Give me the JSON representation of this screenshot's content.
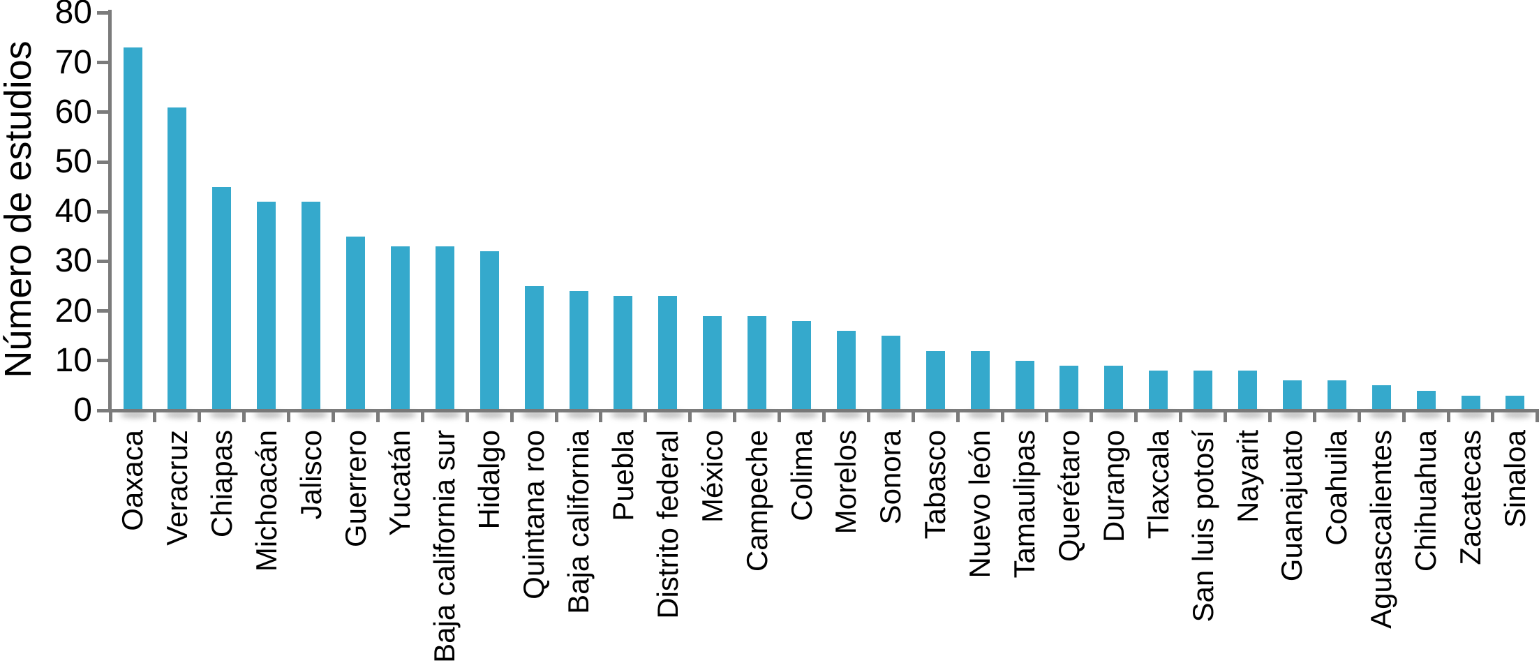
{
  "chart_data": {
    "type": "bar",
    "title": "",
    "xlabel": "",
    "ylabel": "Número de estudios",
    "ylim": [
      0,
      80
    ],
    "y_ticks": [
      0,
      10,
      20,
      30,
      40,
      50,
      60,
      70,
      80
    ],
    "grid": false,
    "legend": false,
    "bar_color": "#35a9cc",
    "axis_color": "#7b7b7b",
    "text_color": "#000000",
    "categories": [
      "Oaxaca",
      "Veracruz",
      "Chiapas",
      "Michoacán",
      "Jalisco",
      "Guerrero",
      "Yucatán",
      "Baja california sur",
      "Hidalgo",
      "Quintana roo",
      "Baja california",
      "Puebla",
      "Distrito federal",
      "México",
      "Campeche",
      "Colima",
      "Morelos",
      "Sonora",
      "Tabasco",
      "Nuevo león",
      "Tamaulipas",
      "Querétaro",
      "Durango",
      "Tlaxcala",
      "San luis potosí",
      "Nayarit",
      "Guanajuato",
      "Coahuila",
      "Aguascalientes",
      "Chihuahua",
      "Zacatecas",
      "Sinaloa"
    ],
    "values": [
      73,
      61,
      45,
      42,
      42,
      35,
      33,
      33,
      32,
      25,
      24,
      23,
      23,
      19,
      19,
      18,
      16,
      15,
      12,
      12,
      10,
      9,
      9,
      8,
      8,
      8,
      6,
      6,
      5,
      4,
      3,
      3
    ]
  }
}
